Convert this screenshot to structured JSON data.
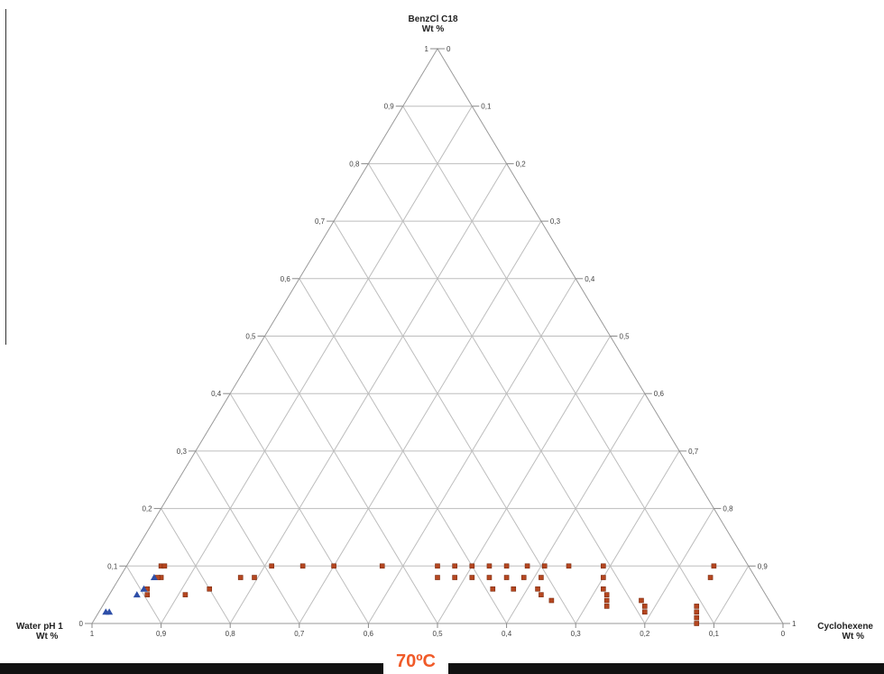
{
  "chart_data": {
    "type": "scatter",
    "subtype": "ternary",
    "annotation": "70ºC",
    "axes": {
      "top": {
        "label_line1": "BenzCl C18",
        "label_line2": "Wt %"
      },
      "left": {
        "label_line1": "Water pH 1",
        "label_line2": "Wt %"
      },
      "right": {
        "label_line1": "Cyclohexene",
        "label_line2": "Wt %"
      }
    },
    "ticks": [
      "0",
      "0,1",
      "0,2",
      "0,3",
      "0,4",
      "0,5",
      "0,6",
      "0,7",
      "0,8",
      "0,9",
      "1"
    ],
    "grid": true,
    "colors": {
      "square": "#b5461f",
      "triangle": "#2e4fa8",
      "annotation": "#f05a28"
    },
    "series": [
      {
        "marker": "square",
        "points": [
          {
            "benzcl": 0.1,
            "cyclohexene": 0.05
          },
          {
            "benzcl": 0.1,
            "cyclohexene": 0.055
          },
          {
            "benzcl": 0.08,
            "cyclohexene": 0.06
          },
          {
            "benzcl": 0.08,
            "cyclohexene": 0.055
          },
          {
            "benzcl": 0.06,
            "cyclohexene": 0.05
          },
          {
            "benzcl": 0.05,
            "cyclohexene": 0.055
          },
          {
            "benzcl": 0.05,
            "cyclohexene": 0.11
          },
          {
            "benzcl": 0.06,
            "cyclohexene": 0.14
          },
          {
            "benzcl": 0.08,
            "cyclohexene": 0.175
          },
          {
            "benzcl": 0.08,
            "cyclohexene": 0.195
          },
          {
            "benzcl": 0.1,
            "cyclohexene": 0.21
          },
          {
            "benzcl": 0.1,
            "cyclohexene": 0.255
          },
          {
            "benzcl": 0.1,
            "cyclohexene": 0.3
          },
          {
            "benzcl": 0.1,
            "cyclohexene": 0.37
          },
          {
            "benzcl": 0.1,
            "cyclohexene": 0.45
          },
          {
            "benzcl": 0.08,
            "cyclohexene": 0.46
          },
          {
            "benzcl": 0.1,
            "cyclohexene": 0.475
          },
          {
            "benzcl": 0.08,
            "cyclohexene": 0.485
          },
          {
            "benzcl": 0.1,
            "cyclohexene": 0.5
          },
          {
            "benzcl": 0.08,
            "cyclohexene": 0.51
          },
          {
            "benzcl": 0.1,
            "cyclohexene": 0.525
          },
          {
            "benzcl": 0.08,
            "cyclohexene": 0.535
          },
          {
            "benzcl": 0.06,
            "cyclohexene": 0.55
          },
          {
            "benzcl": 0.1,
            "cyclohexene": 0.55
          },
          {
            "benzcl": 0.08,
            "cyclohexene": 0.56
          },
          {
            "benzcl": 0.06,
            "cyclohexene": 0.58
          },
          {
            "benzcl": 0.1,
            "cyclohexene": 0.58
          },
          {
            "benzcl": 0.08,
            "cyclohexene": 0.585
          },
          {
            "benzcl": 0.1,
            "cyclohexene": 0.605
          },
          {
            "benzcl": 0.08,
            "cyclohexene": 0.61
          },
          {
            "benzcl": 0.06,
            "cyclohexene": 0.615
          },
          {
            "benzcl": 0.05,
            "cyclohexene": 0.625
          },
          {
            "benzcl": 0.04,
            "cyclohexene": 0.645
          },
          {
            "benzcl": 0.1,
            "cyclohexene": 0.64
          },
          {
            "benzcl": 0.1,
            "cyclohexene": 0.69
          },
          {
            "benzcl": 0.08,
            "cyclohexene": 0.7
          },
          {
            "benzcl": 0.06,
            "cyclohexene": 0.71
          },
          {
            "benzcl": 0.05,
            "cyclohexene": 0.72
          },
          {
            "benzcl": 0.04,
            "cyclohexene": 0.725
          },
          {
            "benzcl": 0.03,
            "cyclohexene": 0.73
          },
          {
            "benzcl": 0.04,
            "cyclohexene": 0.775
          },
          {
            "benzcl": 0.03,
            "cyclohexene": 0.785
          },
          {
            "benzcl": 0.02,
            "cyclohexene": 0.79
          },
          {
            "benzcl": 0.1,
            "cyclohexene": 0.85
          },
          {
            "benzcl": 0.08,
            "cyclohexene": 0.855
          },
          {
            "benzcl": 0.03,
            "cyclohexene": 0.86
          },
          {
            "benzcl": 0.02,
            "cyclohexene": 0.865
          },
          {
            "benzcl": 0.01,
            "cyclohexene": 0.87
          },
          {
            "benzcl": 0.0,
            "cyclohexene": 0.875
          }
        ]
      },
      {
        "marker": "triangle",
        "points": [
          {
            "benzcl": 0.08,
            "cyclohexene": 0.05
          },
          {
            "benzcl": 0.06,
            "cyclohexene": 0.045
          },
          {
            "benzcl": 0.05,
            "cyclohexene": 0.04
          },
          {
            "benzcl": 0.02,
            "cyclohexene": 0.01
          },
          {
            "benzcl": 0.02,
            "cyclohexene": 0.015
          }
        ]
      }
    ]
  }
}
